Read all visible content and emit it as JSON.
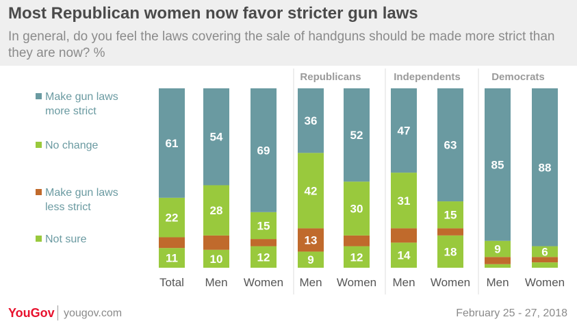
{
  "title": "Most Republican women now favor stricter gun laws",
  "subtitle": "In general, do you feel the laws covering the sale of handguns should be made more strict than they are now? %",
  "footer": {
    "logo": "YouGov",
    "site": "yougov.com",
    "date": "February 25 - 27, 2018"
  },
  "colors": {
    "more_strict": "#6a9aa1",
    "no_change": "#99c93d",
    "less_strict": "#c06a2c",
    "not_sure": "#99c93d",
    "label_text": "#ffffff",
    "axis_text": "#555555",
    "legend_text": "#6a9aa1",
    "group_header": "#9a9a9a",
    "divider": "#dddddd"
  },
  "chart_data": {
    "type": "bar",
    "stacked": true,
    "ylim": [
      0,
      100
    ],
    "groups": [
      "",
      "Republicans",
      "Independents",
      "Democrats"
    ],
    "categories": [
      "Total",
      "Men",
      "Women",
      "Men",
      "Women",
      "Men",
      "Women",
      "Men",
      "Women"
    ],
    "category_groups": [
      0,
      0,
      0,
      1,
      1,
      2,
      2,
      3,
      3
    ],
    "series": [
      {
        "name": "Not sure",
        "values": [
          11,
          10,
          12,
          9,
          12,
          14,
          18,
          2,
          3
        ],
        "labels": [
          "11",
          "10",
          "12",
          "9",
          "12",
          "14",
          "18",
          "",
          ""
        ]
      },
      {
        "name": "Make gun laws less strict",
        "values": [
          6,
          8,
          4,
          13,
          6,
          8,
          4,
          4,
          3
        ],
        "labels": [
          "",
          "",
          "",
          "13",
          "",
          "",
          "",
          "",
          ""
        ]
      },
      {
        "name": "No change",
        "values": [
          22,
          28,
          15,
          42,
          30,
          31,
          15,
          9,
          6
        ],
        "labels": [
          "22",
          "28",
          "15",
          "42",
          "30",
          "31",
          "15",
          "9",
          "6"
        ]
      },
      {
        "name": "Make gun laws more strict",
        "values": [
          61,
          54,
          69,
          36,
          52,
          47,
          63,
          85,
          88
        ],
        "labels": [
          "61",
          "54",
          "69",
          "36",
          "52",
          "47",
          "63",
          "85",
          "88"
        ]
      }
    ],
    "legend": [
      {
        "label": "Make gun laws more strict",
        "lines": [
          "Make gun laws",
          "more strict"
        ],
        "color_key": "more_strict"
      },
      {
        "label": "No change",
        "lines": [
          "No change"
        ],
        "color_key": "no_change"
      },
      {
        "label": "Make gun laws less strict",
        "lines": [
          "Make gun laws",
          "less strict"
        ],
        "color_key": "less_strict"
      },
      {
        "label": "Not sure",
        "lines": [
          "Not sure"
        ],
        "color_key": "not_sure"
      }
    ],
    "legend_position": "left",
    "grid": false
  }
}
